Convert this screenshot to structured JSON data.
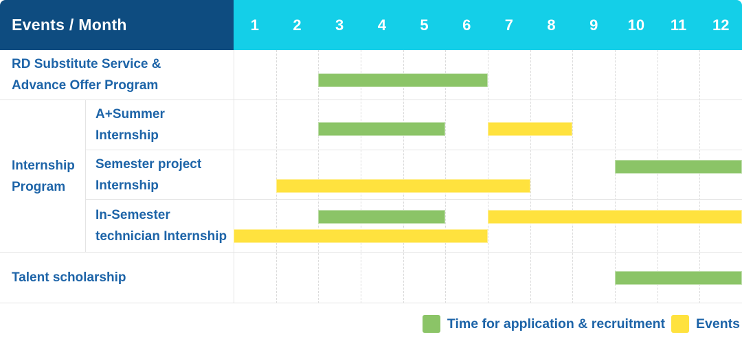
{
  "colors": {
    "header_navy": "#0E4C80",
    "header_cyan": "#14CFE8",
    "application_green": "#8BC467",
    "events_yellow": "#FFE23E",
    "label_blue": "#1D64A8",
    "grid_line": "#E4E4E4",
    "grid_dash": "#DBDBDB"
  },
  "header": {
    "label": "Events / Month",
    "months": [
      "1",
      "2",
      "3",
      "4",
      "5",
      "6",
      "7",
      "8",
      "9",
      "10",
      "11",
      "12"
    ]
  },
  "legend": {
    "items": [
      {
        "kind": "application",
        "label": "Time for application & recruitment"
      },
      {
        "kind": "events",
        "label": "Events"
      }
    ]
  },
  "chart_data": {
    "type": "table",
    "subtype": "gantt-schedule",
    "title": "Events / Month",
    "x_categories": [
      "1",
      "2",
      "3",
      "4",
      "5",
      "6",
      "7",
      "8",
      "9",
      "10",
      "11",
      "12"
    ],
    "x_range": [
      1,
      12
    ],
    "grid": "dashed-vertical",
    "legend_position": "bottom-right",
    "legend": [
      "Time for application & recruitment",
      "Events"
    ],
    "bar_kinds": {
      "application": "Time for application & recruitment",
      "events": "Events"
    },
    "rows": [
      {
        "group": "",
        "label": "RD Substitute Service &\nAdvance Offer Program",
        "bars": [
          {
            "kind": "application",
            "lane": "single",
            "start_month": 3,
            "end_month": 6
          }
        ]
      },
      {
        "group": "Internship\nProgram",
        "label": "A+Summer\nInternship",
        "bars": [
          {
            "kind": "application",
            "lane": "single",
            "start_month": 3,
            "end_month": 5
          },
          {
            "kind": "events",
            "lane": "single",
            "start_month": 7,
            "end_month": 8
          }
        ]
      },
      {
        "group": "Internship\nProgram",
        "label": "Semester project\nInternship",
        "bars": [
          {
            "kind": "application",
            "lane": "top",
            "start_month": 10,
            "end_month": 12
          },
          {
            "kind": "events",
            "lane": "bottom",
            "start_month": 2,
            "end_month": 7
          }
        ]
      },
      {
        "group": "Internship\nProgram",
        "label": "In-Semester\ntechnician Internship",
        "bars": [
          {
            "kind": "application",
            "lane": "top",
            "start_month": 3,
            "end_month": 5
          },
          {
            "kind": "events",
            "lane": "top",
            "start_month": 7,
            "end_month": 12
          },
          {
            "kind": "events",
            "lane": "bottom",
            "start_month": 1,
            "end_month": 6
          }
        ]
      },
      {
        "group": "",
        "label": "Talent scholarship",
        "bars": [
          {
            "kind": "application",
            "lane": "single",
            "start_month": 10,
            "end_month": 12
          }
        ]
      }
    ]
  }
}
